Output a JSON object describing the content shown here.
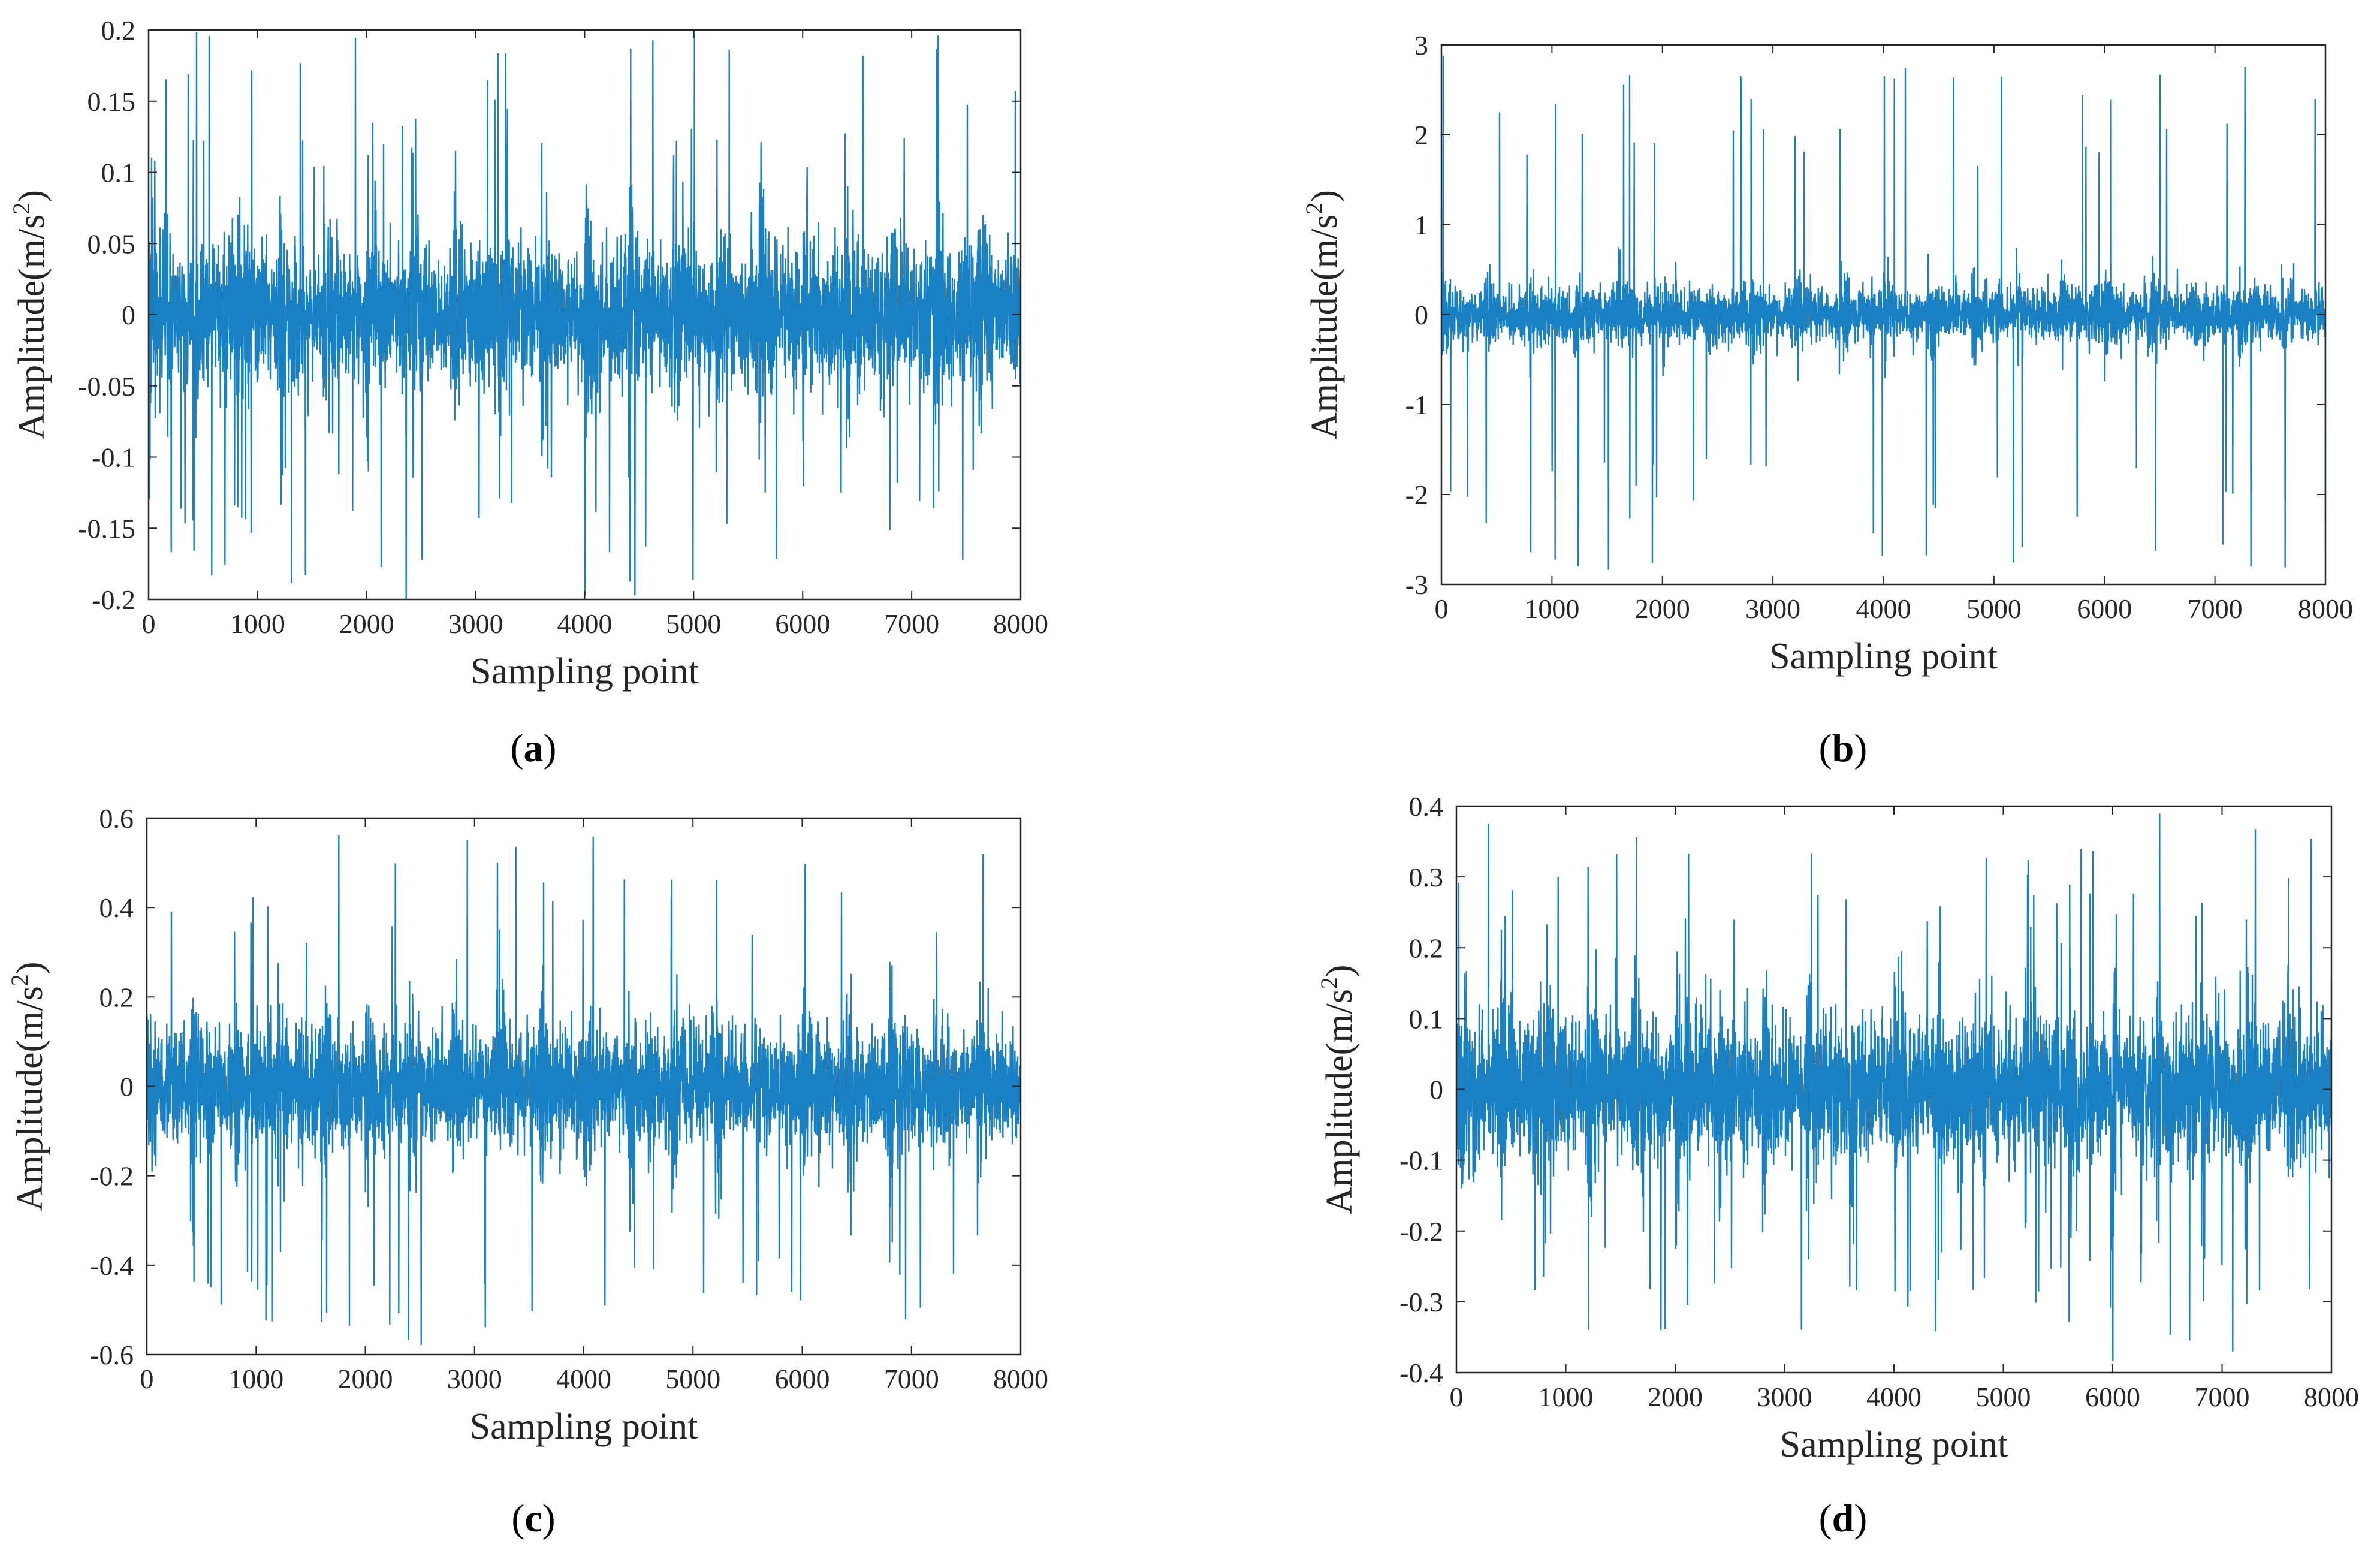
{
  "chart_data": [
    {
      "panel": "a",
      "type": "line",
      "xlabel": "Sampling point",
      "ylabel": "Amplitude(m/s2)",
      "xlim": [
        0,
        8000
      ],
      "ylim": [
        -0.2,
        0.2
      ],
      "xticks": [
        0,
        1000,
        2000,
        3000,
        4000,
        5000,
        6000,
        7000,
        8000
      ],
      "xtick_labels": [
        "0",
        "1000",
        "2000",
        "3000",
        "4000",
        "5000",
        "6000",
        "7000",
        "8000"
      ],
      "yticks": [
        -0.2,
        -0.15,
        -0.1,
        -0.05,
        0,
        0.05,
        0.1,
        0.15,
        0.2
      ],
      "ytick_labels": [
        "-0.2",
        "-0.15",
        "-0.1",
        "-0.05",
        "0",
        "0.05",
        "0.1",
        "0.15",
        "0.2"
      ],
      "signal": {
        "n_points": 8000,
        "base_amplitude": 0.075,
        "peak_amplitude": 0.2,
        "impulse_period": 400
      },
      "series_color": "#0072BD"
    },
    {
      "panel": "b",
      "type": "line",
      "xlabel": "Sampling point",
      "ylabel": "Amplitude(m/s2)",
      "xlim": [
        0,
        8000
      ],
      "ylim": [
        -3,
        3
      ],
      "xticks": [
        0,
        1000,
        2000,
        3000,
        4000,
        5000,
        6000,
        7000,
        8000
      ],
      "xtick_labels": [
        "0",
        "1000",
        "2000",
        "3000",
        "4000",
        "5000",
        "6000",
        "7000",
        "8000"
      ],
      "yticks": [
        -3,
        -2,
        -1,
        0,
        1,
        2,
        3
      ],
      "ytick_labels": [
        "-3",
        "-2",
        "-1",
        "0",
        "1",
        "2",
        "3"
      ],
      "signal": {
        "n_points": 8000,
        "base_amplitude": 0.45,
        "peak_amplitude": 2.85,
        "impulse_period": 400
      },
      "series_color": "#0072BD"
    },
    {
      "panel": "c",
      "type": "line",
      "xlabel": "Sampling point",
      "ylabel": "Amplitude(m/s2)",
      "xlim": [
        0,
        8000
      ],
      "ylim": [
        -0.6,
        0.6
      ],
      "xticks": [
        0,
        1000,
        2000,
        3000,
        4000,
        5000,
        6000,
        7000,
        8000
      ],
      "xtick_labels": [
        "0",
        "1000",
        "2000",
        "3000",
        "4000",
        "5000",
        "6000",
        "7000",
        "8000"
      ],
      "yticks": [
        -0.6,
        -0.4,
        -0.2,
        0,
        0.2,
        0.4,
        0.6
      ],
      "ytick_labels": [
        "-0.6",
        "-0.4",
        "-0.2",
        "0",
        "0.2",
        "0.4",
        "0.6"
      ],
      "signal": {
        "n_points": 8000,
        "base_amplitude": 0.2,
        "peak_amplitude": 0.58,
        "impulse_period": 400
      },
      "series_color": "#0072BD"
    },
    {
      "panel": "d",
      "type": "line",
      "xlabel": "Sampling point",
      "ylabel": "Amplitude(m/s2)",
      "xlim": [
        0,
        8000
      ],
      "ylim": [
        -0.4,
        0.4
      ],
      "xticks": [
        0,
        1000,
        2000,
        3000,
        4000,
        5000,
        6000,
        7000,
        8000
      ],
      "xtick_labels": [
        "0",
        "1000",
        "2000",
        "3000",
        "4000",
        "5000",
        "6000",
        "7000",
        "8000"
      ],
      "yticks": [
        -0.4,
        -0.3,
        -0.2,
        -0.1,
        0,
        0.1,
        0.2,
        0.3,
        0.4
      ],
      "ytick_labels": [
        "-0.4",
        "-0.3",
        "-0.2",
        "-0.1",
        "0",
        "0.1",
        "0.2",
        "0.3",
        "0.4"
      ],
      "signal": {
        "n_points": 8000,
        "base_amplitude": 0.15,
        "peak_amplitude": 0.38,
        "impulse_period": 400
      },
      "series_color": "#0072BD"
    }
  ]
}
